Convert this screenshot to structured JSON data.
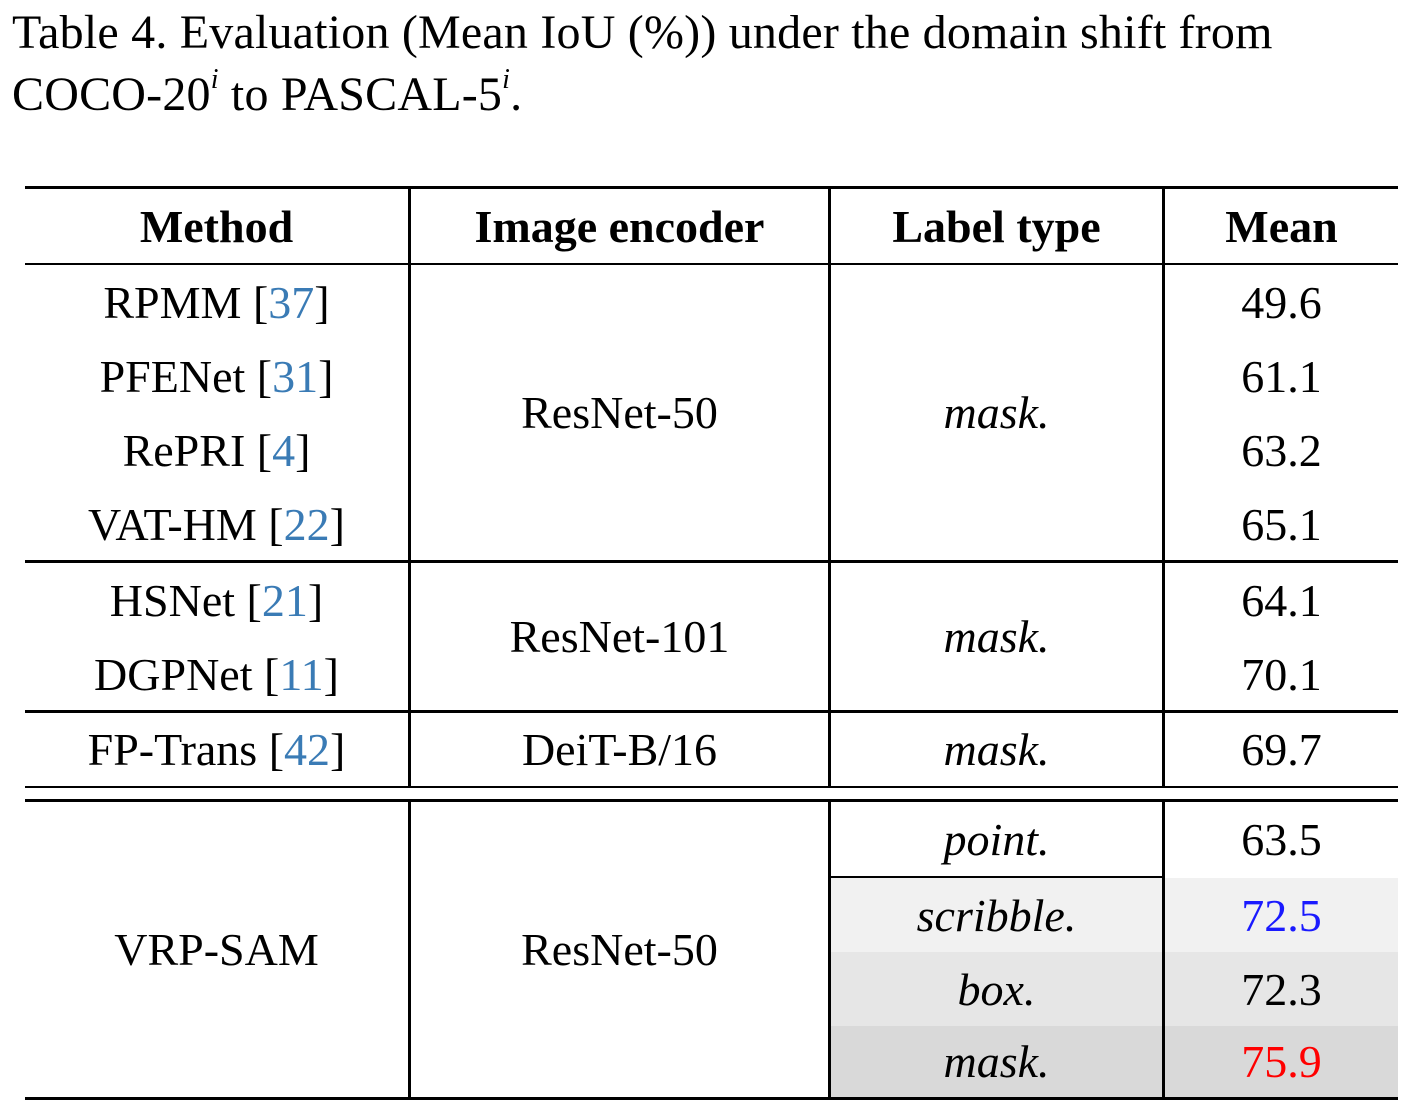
{
  "caption": {
    "prefix": "Table 4.",
    "text_line1": "Evaluation (Mean IoU (%)) under the domain shift from",
    "dataset_from": "COCO-20",
    "sup_from": "i",
    "to_word": " to ",
    "dataset_to": "PASCAL-5",
    "sup_to": "i",
    "end": "."
  },
  "headers": {
    "method": "Method",
    "encoder": "Image encoder",
    "label_type": "Label type",
    "mean": "Mean"
  },
  "groups": [
    {
      "encoder": "ResNet-50",
      "label_type": "mask.",
      "rows": [
        {
          "method": "RPMM",
          "ref": "37",
          "mean": "49.6"
        },
        {
          "method": "PFENet",
          "ref": "31",
          "mean": "61.1"
        },
        {
          "method": "RePRI",
          "ref": "4",
          "mean": "63.2"
        },
        {
          "method": "VAT-HM",
          "ref": "22",
          "mean": "65.1"
        }
      ]
    },
    {
      "encoder": "ResNet-101",
      "label_type": "mask.",
      "rows": [
        {
          "method": "HSNet",
          "ref": "21",
          "mean": "64.1"
        },
        {
          "method": "DGPNet",
          "ref": "11",
          "mean": "70.1"
        }
      ]
    },
    {
      "encoder": "DeiT-B/16",
      "label_type": "mask.",
      "rows": [
        {
          "method": "FP-Trans",
          "ref": "42",
          "mean": "69.7"
        }
      ]
    }
  ],
  "ours": {
    "method": "VRP-SAM",
    "encoder": "ResNet-50",
    "rows": [
      {
        "label_type": "point.",
        "mean": "63.5"
      },
      {
        "label_type": "scribble.",
        "mean": "72.5"
      },
      {
        "label_type": "box.",
        "mean": "72.3"
      },
      {
        "label_type": "mask.",
        "mean": "75.9"
      }
    ]
  },
  "colors": {
    "citation": "#3a7bb5",
    "second_best": "#1a1aff",
    "best": "#ff0000",
    "shade_light": "#f1f1f1",
    "shade_mid": "#e6e6e6",
    "shade_dark": "#d9d9d9"
  }
}
